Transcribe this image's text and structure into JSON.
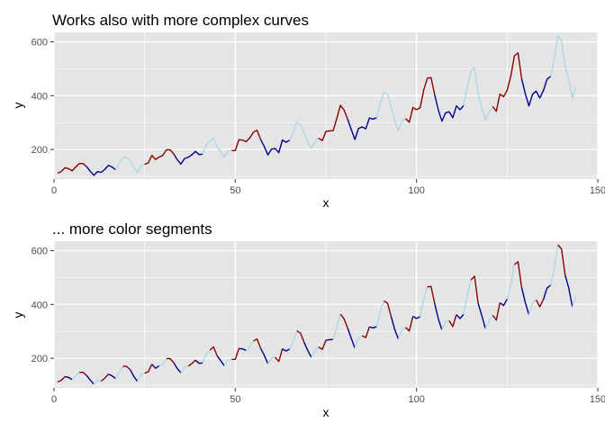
{
  "colors": {
    "panel_bg": "#e5e5e5",
    "grid_major": "#ffffff",
    "tick": "#333333",
    "segment_colors": [
      "#8b0000",
      "#00008b",
      "#add8e6"
    ]
  },
  "chart_data": [
    {
      "type": "line",
      "title": "Works also with more complex curves",
      "xlabel": "x",
      "ylabel": "y",
      "xlim": [
        0,
        150
      ],
      "ylim": [
        90,
        635
      ],
      "xticks": [
        0,
        50,
        100,
        150
      ],
      "yticks": [
        200,
        400,
        600
      ],
      "grid": true,
      "segment_length": 8,
      "color_order": [
        "darkred",
        "darkblue",
        "lightblue"
      ],
      "series": [
        {
          "x": [
            1,
            2,
            3,
            4,
            5,
            6,
            7,
            8,
            9,
            10,
            11,
            12,
            13,
            14,
            15,
            16,
            17,
            18,
            19,
            20,
            21,
            22,
            23,
            24,
            25,
            26,
            27,
            28,
            29,
            30,
            31,
            32,
            33,
            34,
            35,
            36,
            37,
            38,
            39,
            40,
            41,
            42,
            43,
            44,
            45,
            46,
            47,
            48,
            49,
            50,
            51,
            52,
            53,
            54,
            55,
            56,
            57,
            58,
            59,
            60,
            61,
            62,
            63,
            64,
            65,
            66,
            67,
            68,
            69,
            70,
            71,
            72,
            73,
            74,
            75,
            76,
            77,
            78,
            79,
            80,
            81,
            82,
            83,
            84,
            85,
            86,
            87,
            88,
            89,
            90,
            91,
            92,
            93,
            94,
            95,
            96,
            97,
            98,
            99,
            100,
            101,
            102,
            103,
            104,
            105,
            106,
            107,
            108,
            109,
            110,
            111,
            112,
            113,
            114,
            115,
            116,
            117,
            118,
            119,
            120,
            121,
            122,
            123,
            124,
            125,
            126,
            127,
            128,
            129,
            130,
            131,
            132,
            133,
            134,
            135,
            136,
            137,
            138,
            139,
            140,
            141,
            142,
            143,
            144
          ],
          "values": [
            112,
            118,
            132,
            129,
            121,
            135,
            148,
            148,
            136,
            119,
            104,
            118,
            115,
            126,
            141,
            135,
            125,
            149,
            170,
            170,
            158,
            133,
            114,
            140,
            145,
            150,
            178,
            163,
            172,
            178,
            199,
            199,
            184,
            162,
            146,
            166,
            171,
            180,
            193,
            181,
            183,
            218,
            230,
            242,
            209,
            191,
            172,
            194,
            196,
            196,
            236,
            235,
            229,
            243,
            264,
            272,
            237,
            211,
            180,
            201,
            204,
            188,
            235,
            227,
            234,
            264,
            302,
            293,
            259,
            229,
            203,
            229,
            242,
            233,
            267,
            269,
            270,
            315,
            364,
            347,
            312,
            274,
            237,
            278,
            284,
            277,
            317,
            313,
            318,
            374,
            413,
            405,
            355,
            306,
            271,
            306,
            315,
            301,
            356,
            348,
            355,
            422,
            465,
            467,
            404,
            347,
            305,
            336,
            340,
            318,
            362,
            348,
            363,
            435,
            491,
            505,
            404,
            359,
            310,
            337,
            360,
            342,
            406,
            396,
            420,
            472,
            548,
            559,
            463,
            407,
            362,
            405,
            417,
            391,
            419,
            461,
            472,
            535,
            622,
            606,
            508,
            461,
            390,
            432
          ]
        }
      ]
    },
    {
      "type": "line",
      "title": "... more color segments",
      "xlabel": "x",
      "ylabel": "y",
      "xlim": [
        0,
        150
      ],
      "ylim": [
        90,
        635
      ],
      "xticks": [
        0,
        50,
        100,
        150
      ],
      "yticks": [
        200,
        400,
        600
      ],
      "grid": true,
      "segment_length": 2,
      "color_order": [
        "darkred",
        "darkblue",
        "lightblue"
      ],
      "series": [
        {
          "x": [
            1,
            2,
            3,
            4,
            5,
            6,
            7,
            8,
            9,
            10,
            11,
            12,
            13,
            14,
            15,
            16,
            17,
            18,
            19,
            20,
            21,
            22,
            23,
            24,
            25,
            26,
            27,
            28,
            29,
            30,
            31,
            32,
            33,
            34,
            35,
            36,
            37,
            38,
            39,
            40,
            41,
            42,
            43,
            44,
            45,
            46,
            47,
            48,
            49,
            50,
            51,
            52,
            53,
            54,
            55,
            56,
            57,
            58,
            59,
            60,
            61,
            62,
            63,
            64,
            65,
            66,
            67,
            68,
            69,
            70,
            71,
            72,
            73,
            74,
            75,
            76,
            77,
            78,
            79,
            80,
            81,
            82,
            83,
            84,
            85,
            86,
            87,
            88,
            89,
            90,
            91,
            92,
            93,
            94,
            95,
            96,
            97,
            98,
            99,
            100,
            101,
            102,
            103,
            104,
            105,
            106,
            107,
            108,
            109,
            110,
            111,
            112,
            113,
            114,
            115,
            116,
            117,
            118,
            119,
            120,
            121,
            122,
            123,
            124,
            125,
            126,
            127,
            128,
            129,
            130,
            131,
            132,
            133,
            134,
            135,
            136,
            137,
            138,
            139,
            140,
            141,
            142,
            143,
            144
          ],
          "values": [
            112,
            118,
            132,
            129,
            121,
            135,
            148,
            148,
            136,
            119,
            104,
            118,
            115,
            126,
            141,
            135,
            125,
            149,
            170,
            170,
            158,
            133,
            114,
            140,
            145,
            150,
            178,
            163,
            172,
            178,
            199,
            199,
            184,
            162,
            146,
            166,
            171,
            180,
            193,
            181,
            183,
            218,
            230,
            242,
            209,
            191,
            172,
            194,
            196,
            196,
            236,
            235,
            229,
            243,
            264,
            272,
            237,
            211,
            180,
            201,
            204,
            188,
            235,
            227,
            234,
            264,
            302,
            293,
            259,
            229,
            203,
            229,
            242,
            233,
            267,
            269,
            270,
            315,
            364,
            347,
            312,
            274,
            237,
            278,
            284,
            277,
            317,
            313,
            318,
            374,
            413,
            405,
            355,
            306,
            271,
            306,
            315,
            301,
            356,
            348,
            355,
            422,
            465,
            467,
            404,
            347,
            305,
            336,
            340,
            318,
            362,
            348,
            363,
            435,
            491,
            505,
            404,
            359,
            310,
            337,
            360,
            342,
            406,
            396,
            420,
            472,
            548,
            559,
            463,
            407,
            362,
            405,
            417,
            391,
            419,
            461,
            472,
            535,
            622,
            606,
            508,
            461,
            390,
            432
          ]
        }
      ]
    }
  ]
}
